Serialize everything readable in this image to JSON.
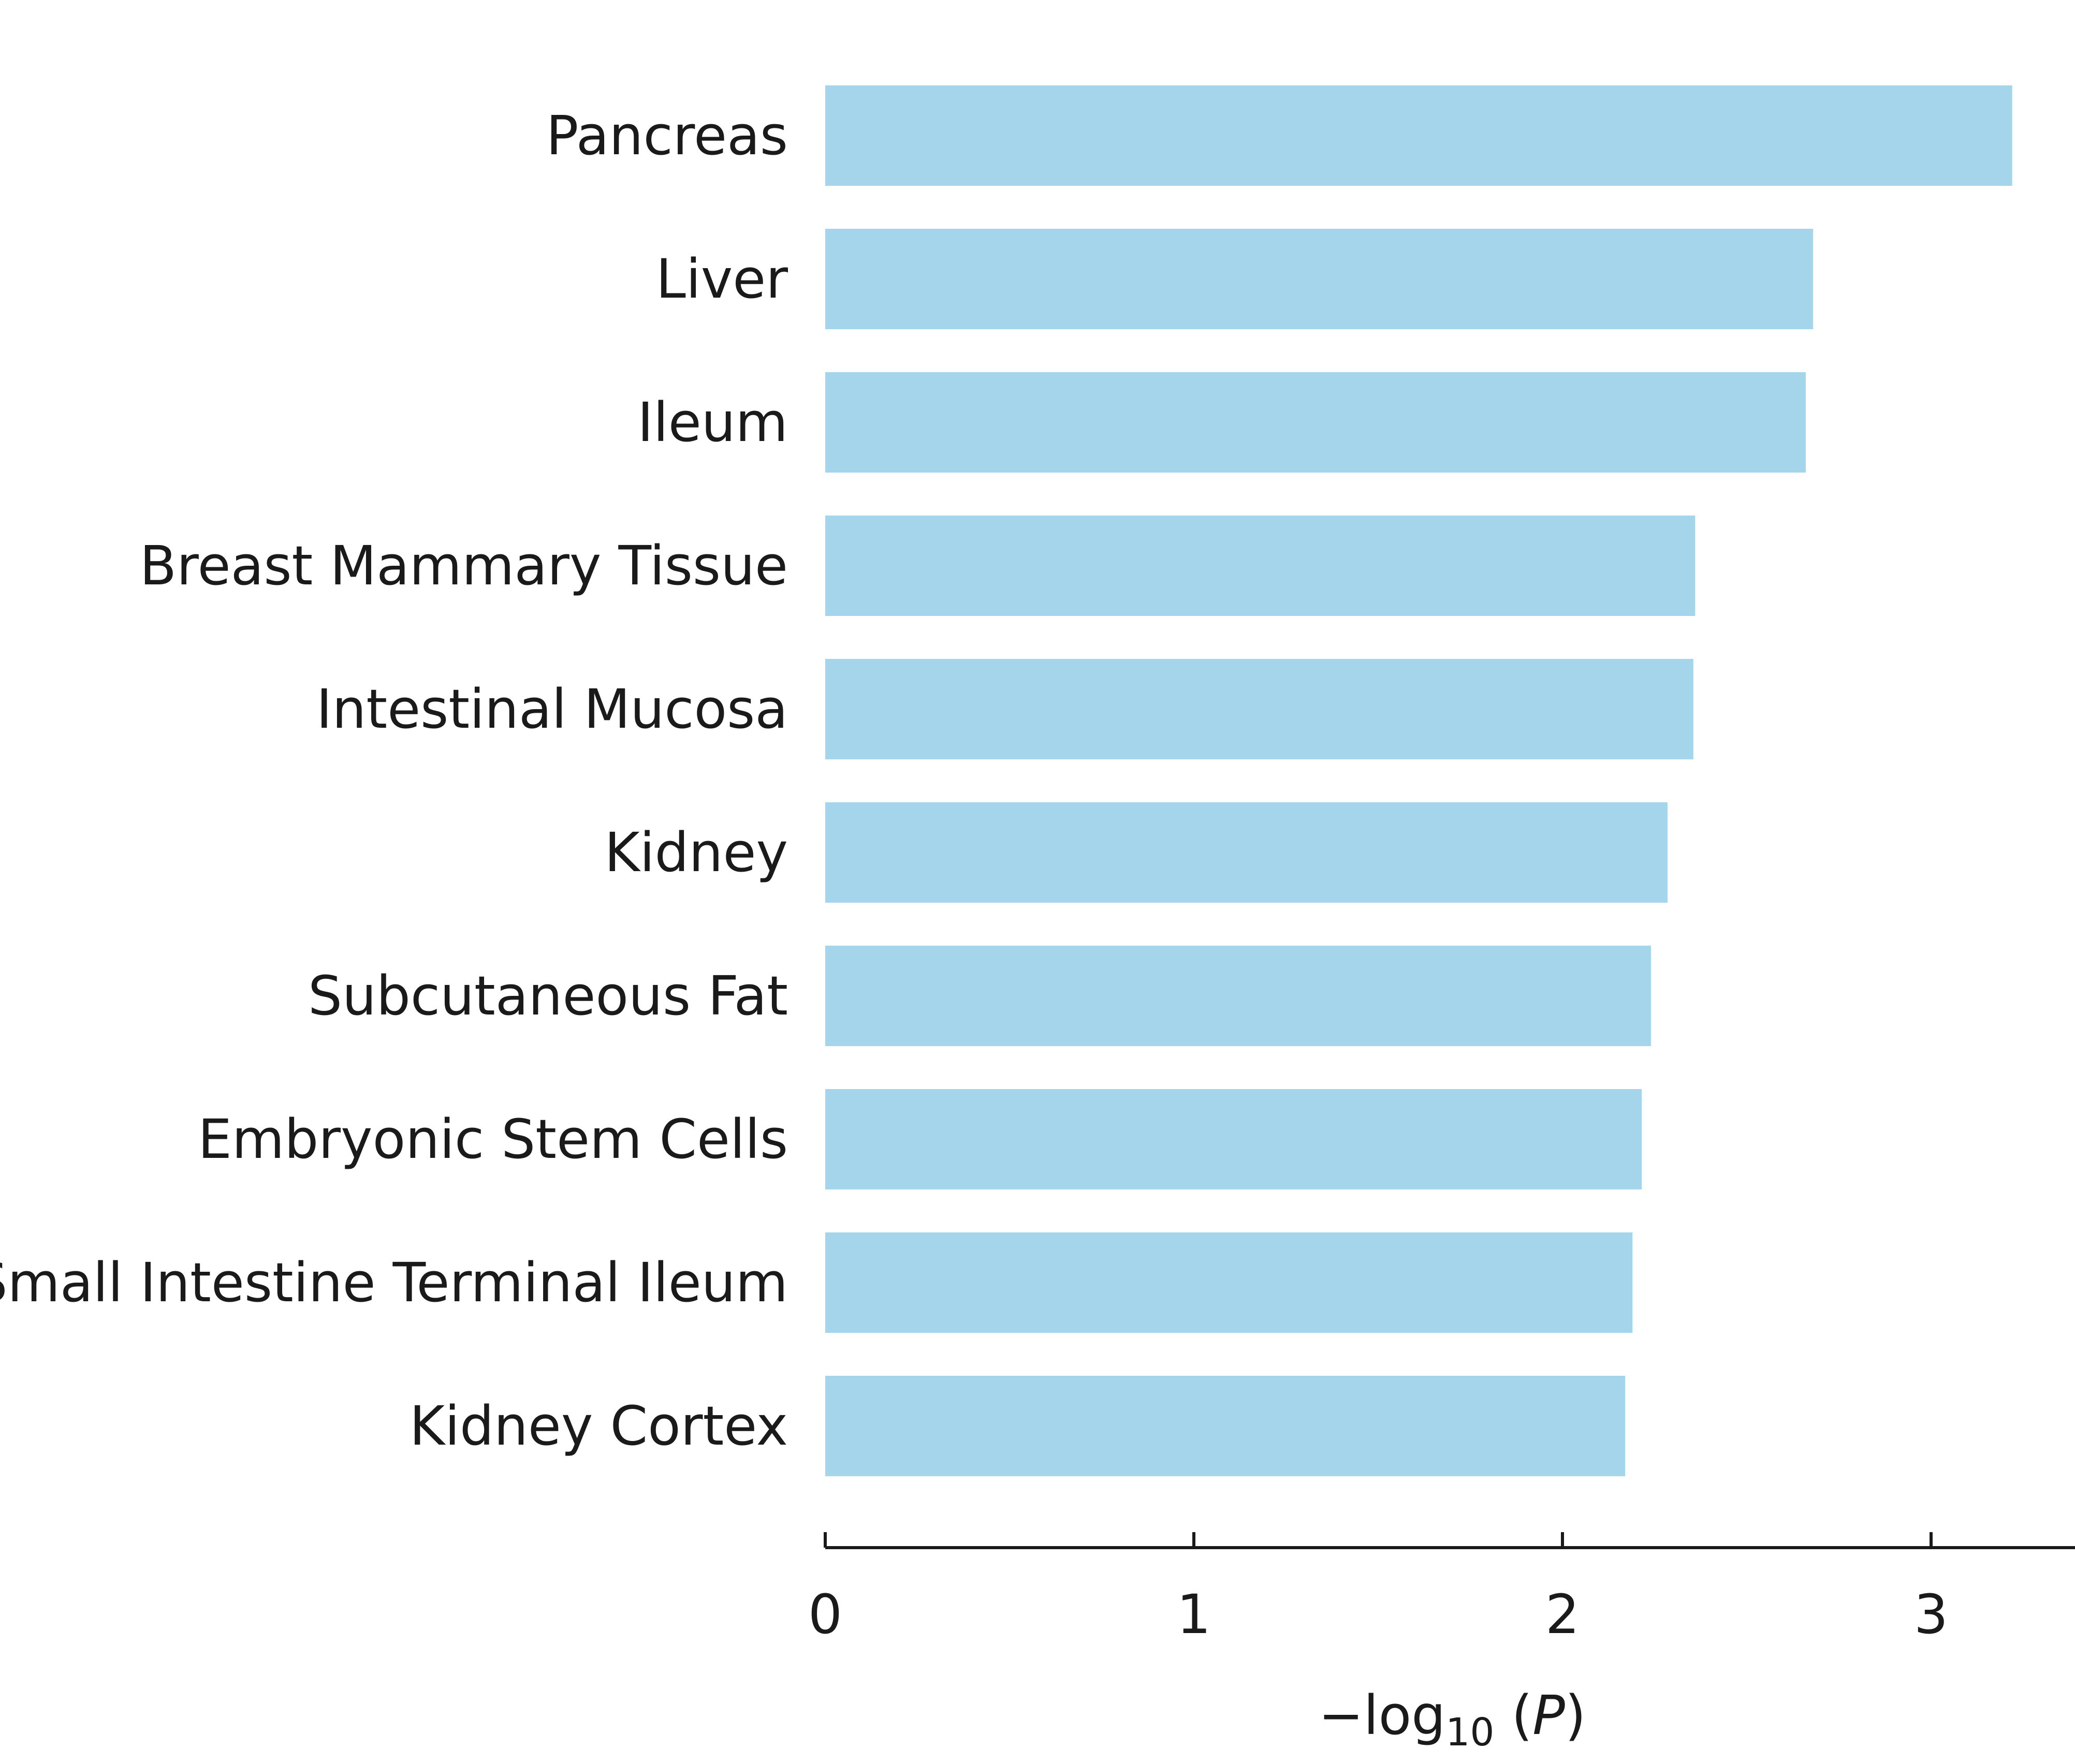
{
  "chart_data": {
    "type": "bar",
    "orientation": "horizontal",
    "categories": [
      "Pancreas",
      "Liver",
      "Ileum",
      "Breast Mammary Tissue",
      "Intestinal Mucosa",
      "Kidney",
      "Subcutaneous Fat",
      "Embryonic Stem Cells",
      "Small Intestine Terminal Ileum",
      "Kidney Cortex"
    ],
    "values": [
      3.22,
      2.68,
      2.66,
      2.36,
      2.355,
      2.285,
      2.24,
      2.215,
      2.19,
      2.17
    ],
    "xlabel": {
      "prefix": "−log",
      "subscript": "10",
      "open": " (",
      "variable": "P",
      "close": ")"
    },
    "xticks": [
      "0",
      "1",
      "2",
      "3"
    ],
    "xlim": [
      0,
      3.4
    ],
    "bar_color": "#a5d5eb",
    "grid": false,
    "legend": "none"
  }
}
